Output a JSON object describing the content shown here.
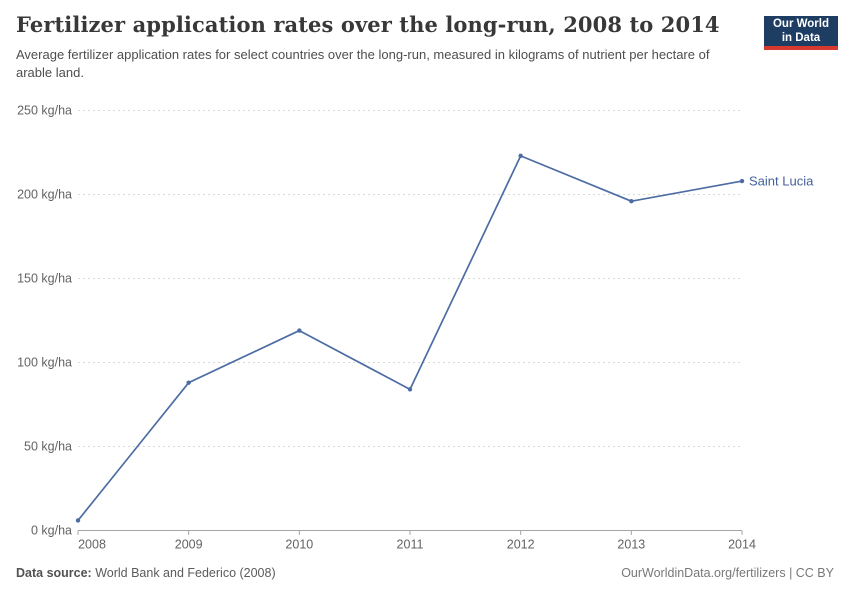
{
  "header": {
    "title": "Fertilizer application rates over the long-run, 2008 to 2014",
    "subtitle": "Average fertilizer application rates for select countries over the long-run, measured in kilograms of nutrient per hectare of arable land.",
    "logo": {
      "line1": "Our World",
      "line2": "in Data",
      "bg_color": "#1d3d63",
      "accent_color": "#d7392f"
    }
  },
  "chart_data": {
    "type": "line",
    "title": "Fertilizer application rates over the long-run, 2008 to 2014",
    "x": [
      2008,
      2009,
      2010,
      2011,
      2012,
      2013,
      2014
    ],
    "series": [
      {
        "name": "Saint Lucia",
        "values": [
          6,
          88,
          119,
          84,
          223,
          196,
          208
        ],
        "color": "#4c6ca3",
        "label_color": "#44619b"
      }
    ],
    "unit": "kg/ha",
    "yticks": [
      0,
      50,
      100,
      150,
      200,
      250
    ],
    "ylim": [
      0,
      250
    ],
    "xlabel": "",
    "ylabel": "",
    "grid": "horizontal-dashed",
    "legend_position": "end-of-line",
    "grid_color": "#d9d9d9",
    "axis_color": "#a5a5a5",
    "tick_label_color": "#636363"
  },
  "footer": {
    "source_label": "Data source:",
    "source_text": " World Bank and Federico (2008)",
    "link_text": "OurWorldinData.org/fertilizers | CC BY"
  }
}
